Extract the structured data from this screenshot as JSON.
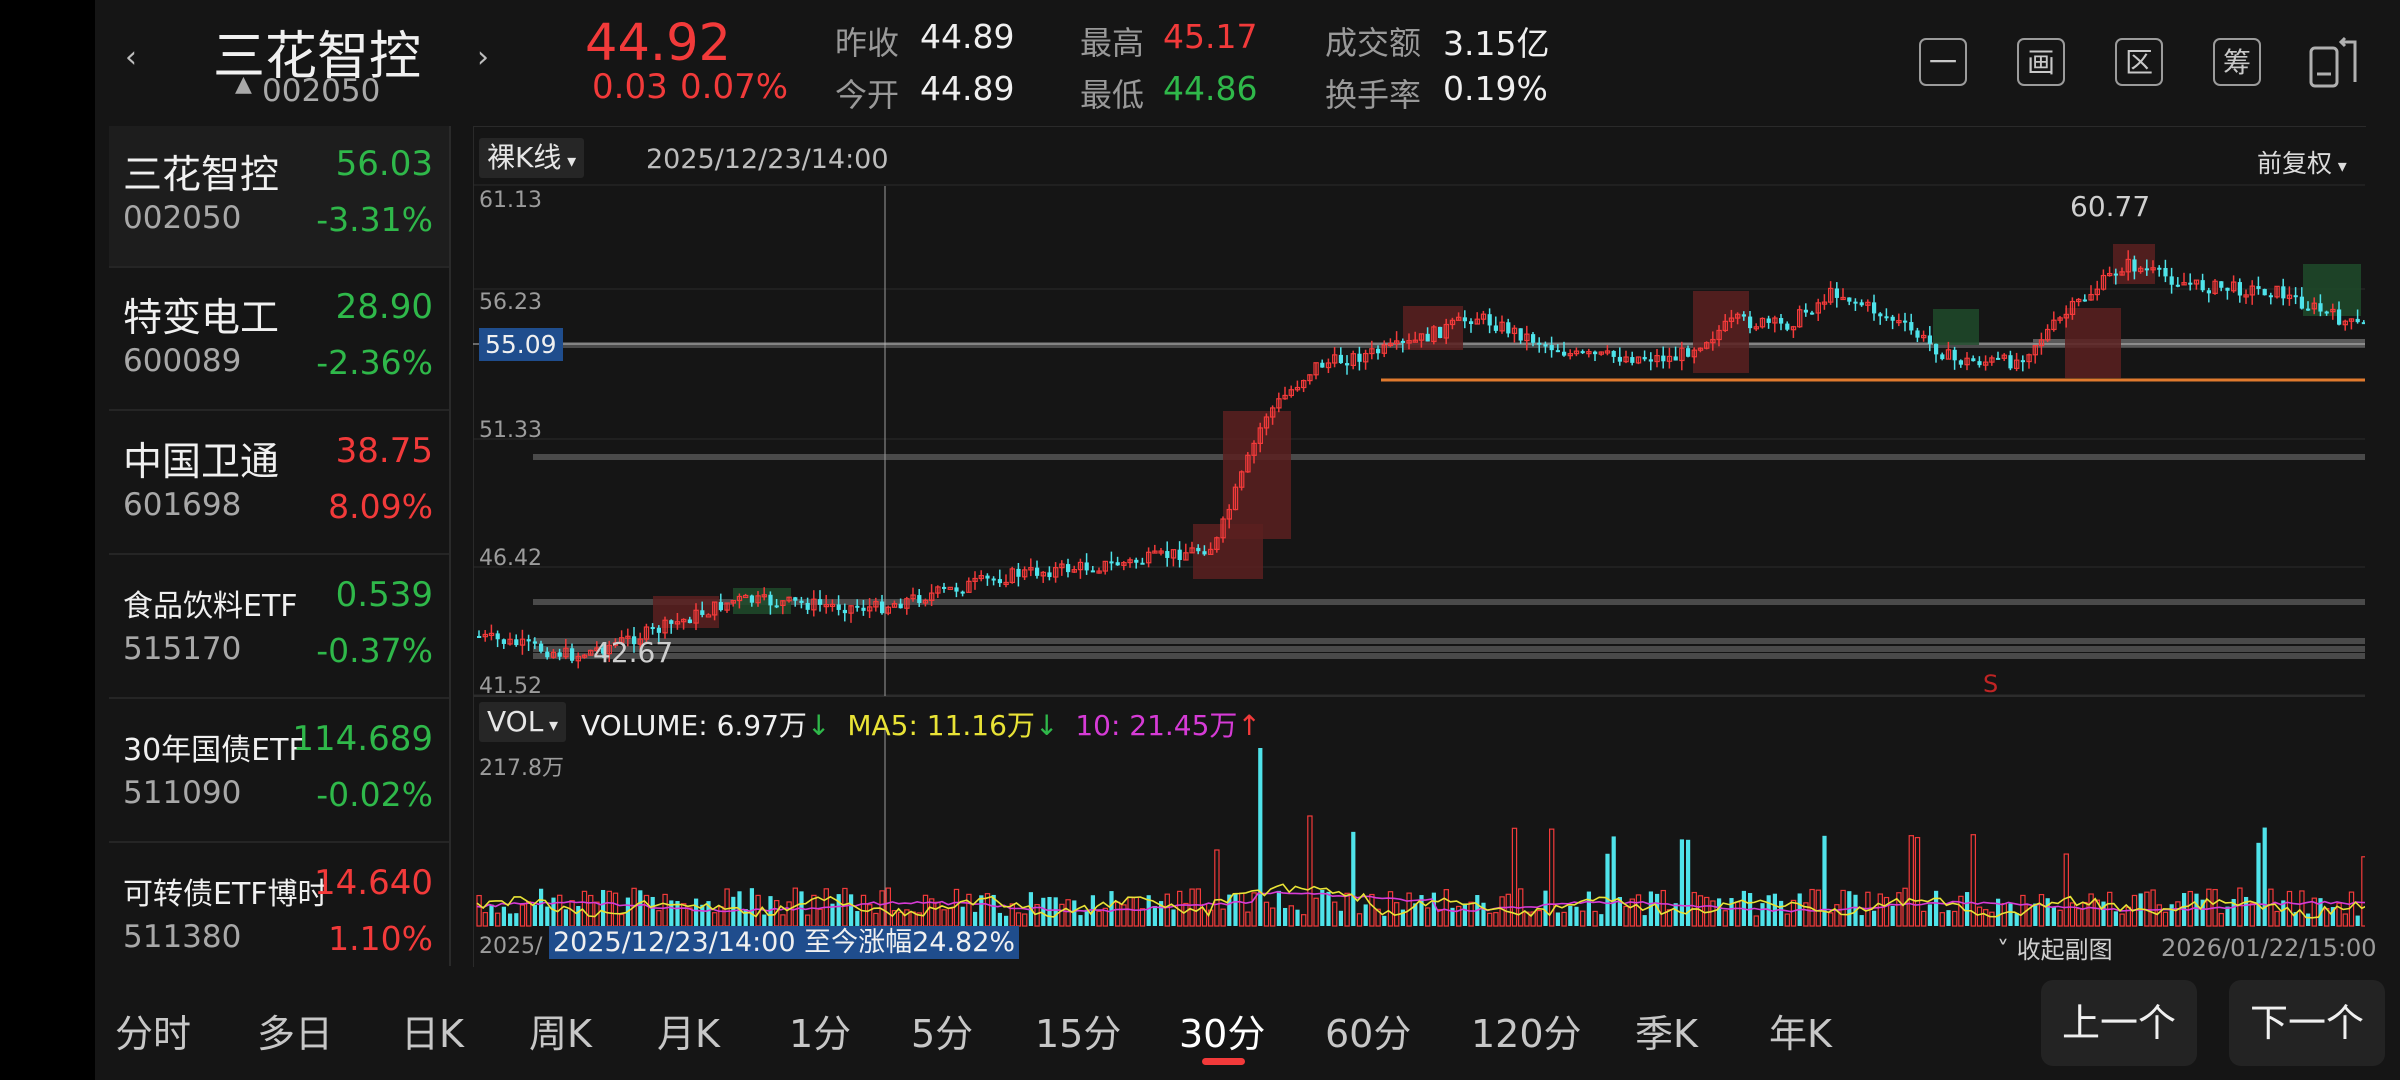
{
  "header": {
    "prev_arrow": "‹",
    "next_arrow": "›",
    "stock_name": "三花智控",
    "stock_code": "002050",
    "price": "44.92",
    "change": "0.03",
    "change_pct": "0.07%",
    "quote": {
      "prev_close_label": "昨收",
      "prev_close": "44.89",
      "open_label": "今开",
      "open": "44.89",
      "high_label": "最高",
      "high": "45.17",
      "low_label": "最低",
      "low": "44.86",
      "amount_label": "成交额",
      "amount": "3.15亿",
      "turnover_label": "换手率",
      "turnover": "0.19%"
    },
    "tools": [
      "一",
      "画",
      "区",
      "筹"
    ]
  },
  "sidebar": {
    "items": [
      {
        "name": "三花智控",
        "price": "56.03",
        "code": "002050",
        "pct": "-3.31%",
        "dir": "down"
      },
      {
        "name": "特变电工",
        "price": "28.90",
        "code": "600089",
        "pct": "-2.36%",
        "dir": "down"
      },
      {
        "name": "中国卫通",
        "price": "38.75",
        "code": "601698",
        "pct": "8.09%",
        "dir": "up"
      },
      {
        "name": "食品饮料ETF",
        "price": "0.539",
        "code": "515170",
        "pct": "-0.37%",
        "dir": "down"
      },
      {
        "name": "30年国债ETF",
        "price": "114.689",
        "code": "511090",
        "pct": "-0.02%",
        "dir": "down"
      },
      {
        "name": "可转债ETF博时",
        "price": "14.640",
        "code": "511380",
        "pct": "1.10%",
        "dir": "up"
      }
    ]
  },
  "chart": {
    "kline_type": "裸K线",
    "date": "2025/12/23/14:00",
    "adjust": "前复权",
    "y_labels": [
      "61.13",
      "56.23",
      "51.33",
      "46.42",
      "41.52"
    ],
    "current_price": "55.09",
    "high_marker": "60.77",
    "low_marker": "42.67",
    "s_marker": "S",
    "vol_label": "VOL",
    "vol_max": "217.8万",
    "volume_text": "VOLUME: 6.97万",
    "ma5_text": "MA5: 11.16万",
    "ma10_text": "10: 21.45万",
    "start_date": "2025/",
    "end_date": "2026/01/22/15:00",
    "crosshair_text": "2025/12/23/14:00 至今涨幅24.82%",
    "collapse_text": "收起副图"
  },
  "tabs": [
    "分时",
    "多日",
    "日K",
    "周K",
    "月K",
    "1分",
    "5分",
    "15分",
    "30分",
    "60分",
    "120分",
    "季K",
    "年K"
  ],
  "active_tab": "30分",
  "buttons": {
    "prev": "上一个",
    "next": "下一个"
  },
  "colors": {
    "up": "#f23a3a",
    "down": "#2fb84a",
    "bull_candle": "#f23a3a",
    "bear_candle": "#4fe3ea",
    "ma5": "#e9e336",
    "ma10": "#d63bd6",
    "support_line": "#e07a2e"
  }
}
